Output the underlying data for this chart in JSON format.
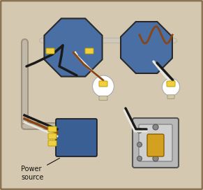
{
  "bg_color": "#d4c8b0",
  "border_color": "#8B7355",
  "junction_box_color": "#4a6fa5",
  "junction_box_color2": "#3a5f95",
  "wire_black": "#1a1a1a",
  "wire_white": "#e8e8e0",
  "wire_brown": "#8B4513",
  "wire_tan": "#c8a882",
  "connector_yellow": "#f0d040",
  "switch_plate_color": "#c8c8c8",
  "switch_toggle_color": "#d4a020",
  "title": "",
  "label_text": "Power\nsource",
  "label_fontsize": 7
}
